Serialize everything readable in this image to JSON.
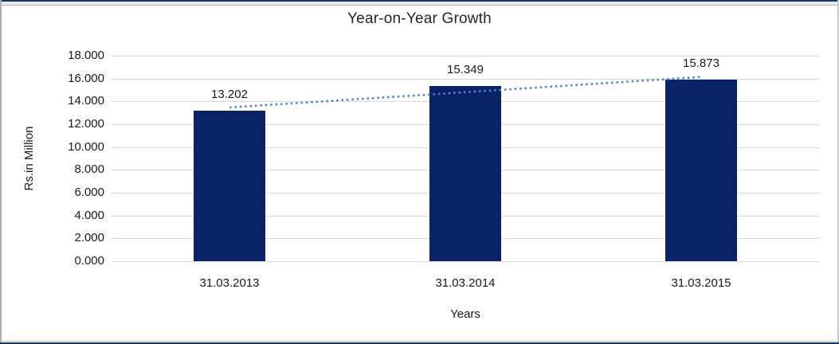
{
  "colors": {
    "bar": "#0a2266",
    "trendline": "#4e87c7",
    "gridline": "#d9d9d9",
    "frame_accent": "#17375e",
    "text": "#1a1a1a"
  },
  "chart_data": {
    "type": "bar",
    "title": "Year-on-Year Growth",
    "xlabel": "Years",
    "ylabel": "Rs.in Million",
    "categories": [
      "31.03.2013",
      "31.03.2014",
      "31.03.2015"
    ],
    "values": [
      13202,
      15349,
      15873
    ],
    "value_labels": [
      "13.202",
      "15.349",
      "15.873"
    ],
    "ylim": [
      0,
      18000
    ],
    "ytick_step": 2000,
    "ytick_labels": [
      "0.000",
      "2.000",
      "4.000",
      "6.000",
      "8.000",
      "10.000",
      "12.000",
      "14.000",
      "16.000",
      "18.000"
    ],
    "grid": true,
    "legend": "none",
    "trendline": {
      "type": "linear",
      "style": "dotted",
      "start_value": 13470,
      "end_value": 16145
    }
  }
}
